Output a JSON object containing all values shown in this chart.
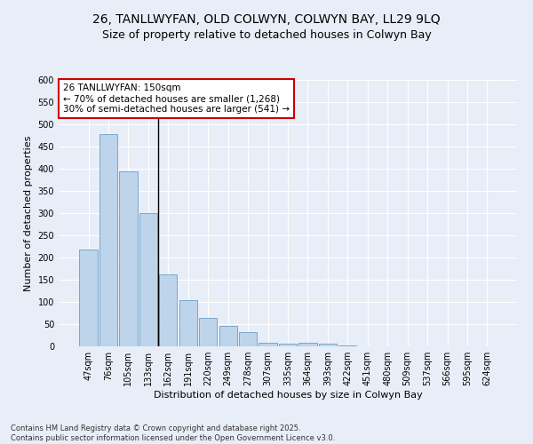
{
  "title": "26, TANLLWYFAN, OLD COLWYN, COLWYN BAY, LL29 9LQ",
  "subtitle": "Size of property relative to detached houses in Colwyn Bay",
  "xlabel": "Distribution of detached houses by size in Colwyn Bay",
  "ylabel": "Number of detached properties",
  "categories": [
    "47sqm",
    "76sqm",
    "105sqm",
    "133sqm",
    "162sqm",
    "191sqm",
    "220sqm",
    "249sqm",
    "278sqm",
    "307sqm",
    "335sqm",
    "364sqm",
    "393sqm",
    "422sqm",
    "451sqm",
    "480sqm",
    "509sqm",
    "537sqm",
    "566sqm",
    "595sqm",
    "624sqm"
  ],
  "values": [
    218,
    478,
    395,
    301,
    163,
    105,
    64,
    46,
    33,
    8,
    7,
    8,
    6,
    2,
    1,
    1,
    0,
    0,
    0,
    0,
    1
  ],
  "bar_color": "#bdd4ea",
  "bar_edge_color": "#6a9fc8",
  "annotation_text": "26 TANLLWYFAN: 150sqm\n← 70% of detached houses are smaller (1,268)\n30% of semi-detached houses are larger (541) →",
  "annotation_box_color": "#ffffff",
  "annotation_box_edge_color": "#cc0000",
  "ylim": [
    0,
    600
  ],
  "yticks": [
    0,
    50,
    100,
    150,
    200,
    250,
    300,
    350,
    400,
    450,
    500,
    550,
    600
  ],
  "bg_color": "#e8eef8",
  "grid_color": "#ffffff",
  "footer": "Contains HM Land Registry data © Crown copyright and database right 2025.\nContains public sector information licensed under the Open Government Licence v3.0.",
  "title_fontsize": 10,
  "subtitle_fontsize": 9,
  "axis_label_fontsize": 8,
  "tick_fontsize": 7,
  "annotation_fontsize": 7.5,
  "footer_fontsize": 6
}
